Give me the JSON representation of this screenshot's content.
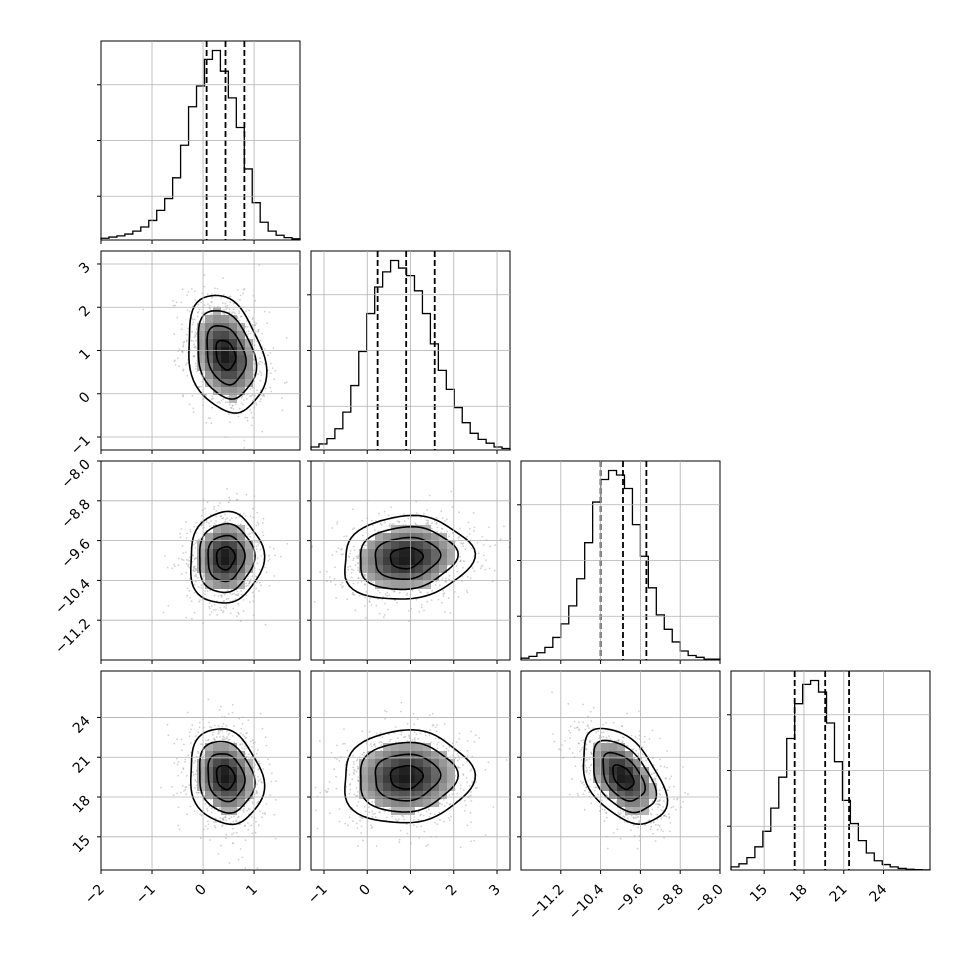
{
  "chart_data": {
    "type": "corner",
    "parameters": [
      {
        "index": 0,
        "range": [
          -2.0,
          1.9
        ],
        "ticks": [
          "−2",
          "−1",
          "0",
          "1"
        ],
        "tick_values": [
          -2,
          -1,
          0,
          1
        ],
        "quantiles": [
          0.07,
          0.44,
          0.81
        ],
        "hist": [
          0.3,
          0.5,
          0.7,
          1.0,
          1.5,
          2.2,
          3.3,
          5,
          7,
          10.5,
          16,
          22.5,
          26,
          30.5,
          32,
          28.5,
          24,
          19,
          12,
          6.3,
          3,
          1.5,
          0.8,
          0.4,
          0.2
        ]
      },
      {
        "index": 1,
        "range": [
          -1.3,
          3.3
        ],
        "ticks": [
          "−1",
          "0",
          "1",
          "2",
          "3"
        ],
        "tick_values": [
          -1,
          0,
          1,
          2,
          3
        ],
        "quantiles": [
          0.24,
          0.9,
          1.56
        ],
        "hist": [
          0.4,
          0.8,
          1.5,
          2.8,
          5,
          8.5,
          13,
          18,
          21.5,
          23.5,
          25,
          24,
          23,
          21,
          18,
          14,
          10.5,
          8,
          5.6,
          3.6,
          2.2,
          1.4,
          0.9,
          0.4,
          0.2
        ]
      },
      {
        "index": 2,
        "range": [
          -12.0,
          -8.0
        ],
        "ticks": [
          "−11.2",
          "−10.4",
          "−9.6",
          "−8.8",
          "−8.0"
        ],
        "tick_values": [
          -11.2,
          -10.4,
          -9.6,
          -8.8,
          -8.0
        ],
        "quantiles": [
          -10.4,
          -9.95,
          -9.48
        ],
        "hist": [
          0.2,
          0.4,
          0.8,
          1.4,
          2.5,
          4,
          6,
          9,
          13,
          17.5,
          20,
          21,
          20.5,
          19,
          15,
          11.5,
          8,
          5,
          3.4,
          2,
          1,
          0.5,
          0.3,
          0.1,
          0.1
        ]
      },
      {
        "index": 3,
        "range": [
          12.5,
          27.5
        ],
        "ticks": [
          "15",
          "18",
          "21",
          "24"
        ],
        "tick_values": [
          15,
          18,
          21,
          24
        ],
        "quantiles": [
          17.3,
          19.6,
          21.4
        ],
        "hist": [
          0.4,
          0.8,
          1.6,
          3,
          5,
          8,
          12,
          17,
          21.5,
          24,
          24.5,
          23,
          19,
          14,
          9,
          6,
          3.8,
          2.2,
          1.2,
          0.7,
          0.4,
          0.2,
          0.1,
          0.05,
          0.02
        ]
      }
    ],
    "pairs": [
      {
        "x": 0,
        "y": 1,
        "mean": [
          0.44,
          0.9
        ],
        "sd": [
          0.38,
          0.68
        ],
        "rho": -0.25
      },
      {
        "x": 0,
        "y": 2,
        "mean": [
          0.44,
          -9.95
        ],
        "sd": [
          0.36,
          0.46
        ],
        "rho": 0.05
      },
      {
        "x": 1,
        "y": 2,
        "mean": [
          0.9,
          -9.95
        ],
        "sd": [
          0.75,
          0.42
        ],
        "rho": 0.1
      },
      {
        "x": 0,
        "y": 3,
        "mean": [
          0.44,
          19.5
        ],
        "sd": [
          0.36,
          1.8
        ],
        "rho": -0.15
      },
      {
        "x": 1,
        "y": 3,
        "mean": [
          0.9,
          19.5
        ],
        "sd": [
          0.75,
          1.75
        ],
        "rho": 0.05
      },
      {
        "x": 2,
        "y": 3,
        "mean": [
          -9.95,
          19.5
        ],
        "sd": [
          0.42,
          1.8
        ],
        "rho": -0.45
      }
    ],
    "title": "",
    "xlabel": "",
    "ylabel": "",
    "grid": true,
    "legend": "none"
  }
}
